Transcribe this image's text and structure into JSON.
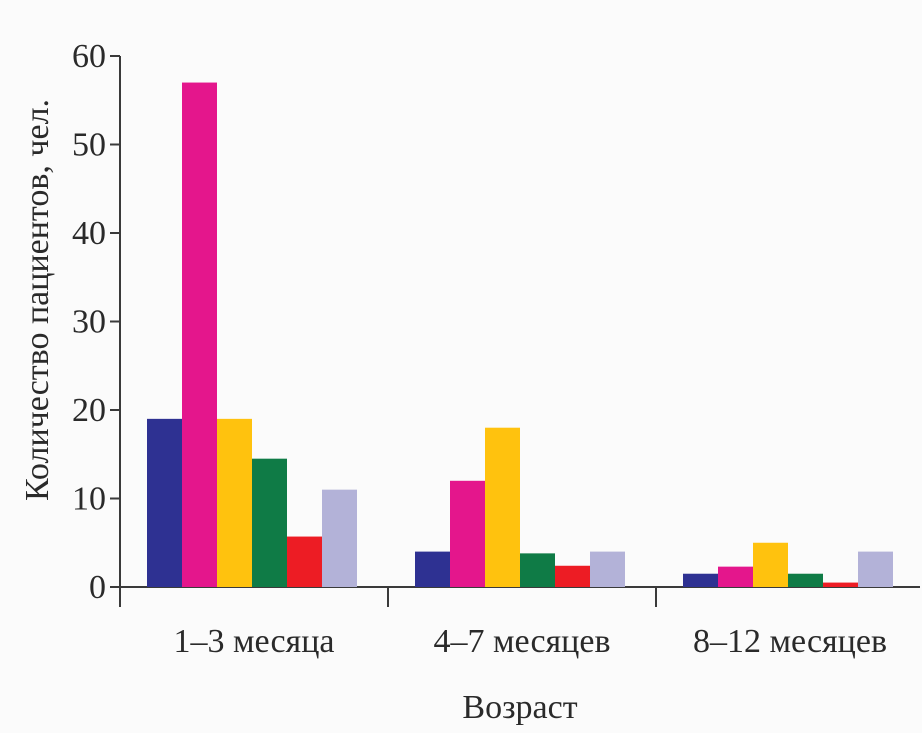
{
  "chart_data": {
    "type": "bar",
    "xlabel": "Возраст",
    "ylabel": "Количество пациентов, чел.",
    "ylim": [
      0,
      60
    ],
    "yticks": [
      "0",
      "10",
      "20",
      "30",
      "40",
      "50",
      "60"
    ],
    "categories": [
      "1–3 месяца",
      "4–7 месяцев",
      "8–12 месяцев"
    ],
    "series": [
      {
        "color": "#2e3192",
        "values": [
          19,
          4,
          1.5
        ]
      },
      {
        "color": "#e4168c",
        "values": [
          57,
          12,
          2.3
        ]
      },
      {
        "color": "#ffc20e",
        "values": [
          19,
          18,
          5
        ]
      },
      {
        "color": "#0f7b46",
        "values": [
          14.5,
          3.8,
          1.5
        ]
      },
      {
        "color": "#ed1c24",
        "values": [
          5.7,
          2.4,
          0.5
        ]
      },
      {
        "color": "#b3b2d8",
        "values": [
          11,
          4,
          4
        ]
      }
    ],
    "grid": false,
    "legend": "none"
  }
}
